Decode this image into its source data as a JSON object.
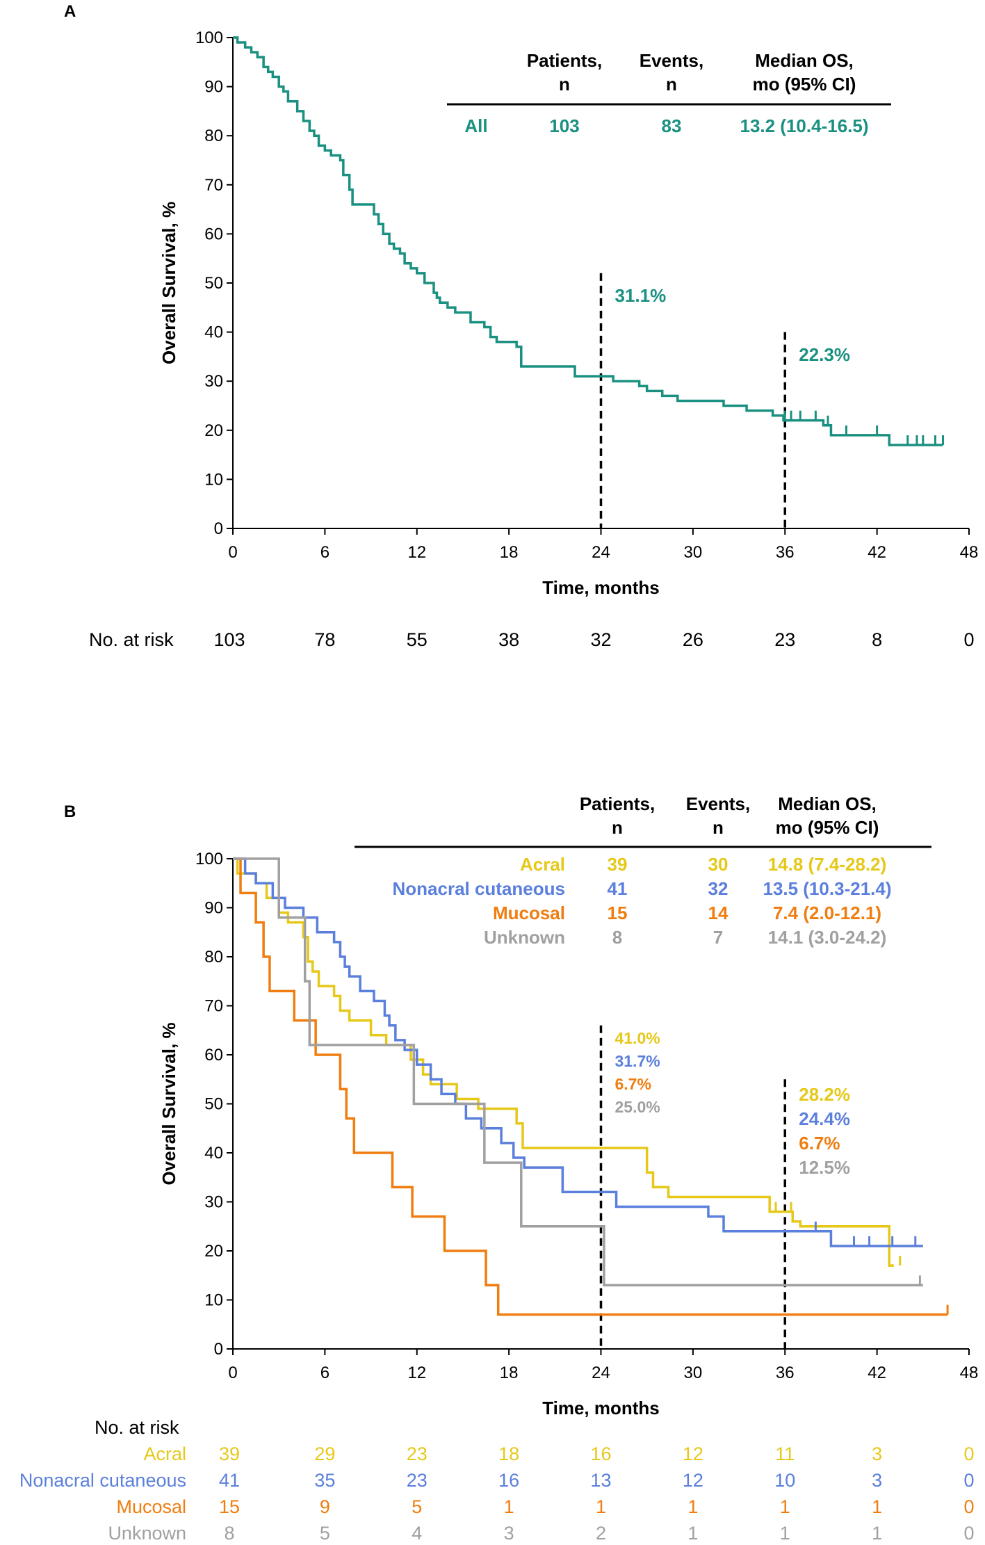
{
  "colors": {
    "all": "#1a9080",
    "acral": "#e6c819",
    "nonacral": "#5b7fdc",
    "mucosal": "#f07d0f",
    "unknown": "#a0a0a0",
    "black": "#000000"
  },
  "chart_data": [
    {
      "panel": "A",
      "type": "line",
      "subtype": "kaplan-meier",
      "ylabel": "Overall Survival, %",
      "xlabel": "Time, months",
      "xlim": [
        0,
        48
      ],
      "ylim": [
        0,
        100
      ],
      "xticks": [
        "0",
        "6",
        "12",
        "18",
        "24",
        "30",
        "36",
        "42",
        "48"
      ],
      "yticks": [
        "0",
        "10",
        "20",
        "30",
        "40",
        "50",
        "60",
        "70",
        "80",
        "90",
        "100"
      ],
      "table_headers": [
        "Patients,\nn",
        "Events,\nn",
        "Median OS,\nmo (95% CI)"
      ],
      "table_header_lines": [
        [
          "Patients,",
          "n"
        ],
        [
          "Events,",
          "n"
        ],
        [
          "Median OS,",
          "mo (95% CI)"
        ]
      ],
      "series": [
        {
          "name": "All",
          "color_key": "all",
          "patients": "103",
          "events": "83",
          "median": "13.2 (10.4-16.5)",
          "x": [
            0,
            0.3,
            0.8,
            1.2,
            1.6,
            2.0,
            2.3,
            2.6,
            3.0,
            3.3,
            3.6,
            4.2,
            4.6,
            5.0,
            5.3,
            5.6,
            6.0,
            6.4,
            7.0,
            7.2,
            7.6,
            7.8,
            8.2,
            9.2,
            9.5,
            9.8,
            10.2,
            10.5,
            10.9,
            11.2,
            11.6,
            12.0,
            12.5,
            13.1,
            13.3,
            13.5,
            14.0,
            14.5,
            15.5,
            16.4,
            16.8,
            17.2,
            18.5,
            18.8,
            21.5,
            22.3,
            24.8,
            26.5,
            27.0,
            28.0,
            29.0,
            32.0,
            33.5,
            35.2,
            35.9,
            36.5,
            38.5,
            39.0,
            42.8,
            46.3
          ],
          "y": [
            100,
            99,
            98,
            97,
            96,
            94,
            93,
            92,
            90,
            89,
            87,
            85,
            83,
            81,
            80,
            78,
            77,
            76,
            75,
            72,
            69,
            66,
            66,
            64,
            62,
            60,
            58,
            57,
            56,
            54,
            53,
            52,
            50,
            48,
            47,
            46,
            45,
            44,
            42,
            41,
            39,
            38,
            37,
            33,
            33,
            31,
            30,
            29,
            28,
            27,
            26,
            25,
            24,
            23,
            22,
            22,
            21,
            19,
            17,
            17
          ],
          "censor_x": [
            36.0,
            36.4,
            37.0,
            38.0,
            38.8,
            40.0,
            42.0,
            44.0,
            44.6,
            45.0,
            45.8,
            46.3
          ],
          "landmarks": [
            {
              "x": 24,
              "label": "31.1%"
            },
            {
              "x": 36,
              "label": "22.3%"
            }
          ]
        }
      ],
      "at_risk_label": "No. at risk",
      "at_risk": [
        [
          "103",
          "78",
          "55",
          "38",
          "32",
          "26",
          "23",
          "8",
          "0"
        ]
      ]
    },
    {
      "panel": "B",
      "type": "line",
      "subtype": "kaplan-meier",
      "ylabel": "Overall Survival, %",
      "xlabel": "Time, months",
      "xlim": [
        0,
        48
      ],
      "ylim": [
        0,
        100
      ],
      "xticks": [
        "0",
        "6",
        "12",
        "18",
        "24",
        "30",
        "36",
        "42",
        "48"
      ],
      "yticks": [
        "0",
        "10",
        "20",
        "30",
        "40",
        "50",
        "60",
        "70",
        "80",
        "90",
        "100"
      ],
      "table_headers": [
        "Patients,\nn",
        "Events,\nn",
        "Median OS,\nmo (95% CI)"
      ],
      "table_header_lines": [
        [
          "Patients,",
          "n"
        ],
        [
          "Events,",
          "n"
        ],
        [
          "Median OS,",
          "mo (95% CI)"
        ]
      ],
      "series": [
        {
          "name": "Acral",
          "color_key": "acral",
          "patients": "39",
          "events": "30",
          "median": "14.8 (7.4-28.2)",
          "x": [
            0,
            0.3,
            1.5,
            2.2,
            3.0,
            3.6,
            4.6,
            4.9,
            5.2,
            5.6,
            6.6,
            7.0,
            7.6,
            9.0,
            10.0,
            11.6,
            12.4,
            12.9,
            14.6,
            16.0,
            18.5,
            18.9,
            24.0,
            27.0,
            27.4,
            28.4,
            28.8,
            35.0,
            35.6,
            36.5,
            37.0,
            42.8,
            43.1
          ],
          "y": [
            100,
            97,
            95,
            92,
            89,
            87,
            84,
            79,
            77,
            74,
            72,
            69,
            67,
            64,
            62,
            59,
            56,
            54,
            51,
            49,
            46,
            41,
            41,
            36,
            33,
            31,
            31,
            28,
            28,
            26,
            25,
            17,
            17
          ],
          "censor_x": [
            35.4,
            36.4,
            43.5
          ],
          "landmark_label": "41.0%",
          "landmark36_label": "28.2%"
        },
        {
          "name": "Nonacral cutaneous",
          "color_key": "nonacral",
          "patients": "41",
          "events": "32",
          "median": "13.5 (10.3-21.4)",
          "x": [
            0,
            0.8,
            1.5,
            2.6,
            3.4,
            4.6,
            5.5,
            6.6,
            7.0,
            7.3,
            7.6,
            8.3,
            9.2,
            9.9,
            10.2,
            10.6,
            11.2,
            12.0,
            12.9,
            13.6,
            14.5,
            15.2,
            16.2,
            17.5,
            18.3,
            19.0,
            21.5,
            24.0,
            25.0,
            31.0,
            32.0,
            39.0,
            45.0
          ],
          "y": [
            100,
            97,
            95,
            92,
            90,
            88,
            85,
            83,
            80,
            78,
            76,
            73,
            71,
            68,
            66,
            63,
            61,
            58,
            55,
            52,
            50,
            47,
            45,
            42,
            39,
            37,
            32,
            32,
            29,
            27,
            24,
            21,
            21
          ],
          "censor_x": [
            38.0,
            40.5,
            41.5,
            43.0,
            44.5
          ],
          "landmark_label": "31.7%",
          "landmark36_label": "24.4%"
        },
        {
          "name": "Mucosal",
          "color_key": "mucosal",
          "patients": "15",
          "events": "14",
          "median": "7.4 (2.0-12.1)",
          "x": [
            0,
            0.5,
            1.5,
            2.0,
            2.4,
            4.0,
            5.4,
            7.0,
            7.4,
            7.9,
            10.4,
            11.7,
            13.8,
            16.5,
            17.3,
            46.6
          ],
          "y": [
            100,
            93,
            87,
            80,
            73,
            67,
            60,
            53,
            47,
            40,
            33,
            27,
            20,
            13,
            7,
            7
          ],
          "censor_x": [
            46.6
          ],
          "landmark_label": "6.7%",
          "landmark36_label": "6.7%"
        },
        {
          "name": "Unknown",
          "color_key": "unknown",
          "patients": "8",
          "events": "7",
          "median": "14.1 (3.0-24.2)",
          "x": [
            0,
            3.0,
            3.7,
            4.7,
            5.0,
            11.8,
            16.4,
            18.8,
            24.2,
            45.0
          ],
          "y": [
            100,
            88,
            88,
            75,
            62,
            50,
            38,
            25,
            13,
            13
          ],
          "censor_x": [
            44.8
          ],
          "landmark_label": "25.0%",
          "landmark36_label": "12.5%"
        }
      ],
      "at_risk_label": "No. at risk",
      "at_risk_groups": [
        "Acral",
        "Nonacral cutaneous",
        "Mucosal",
        "Unknown"
      ],
      "at_risk": [
        [
          "39",
          "29",
          "23",
          "18",
          "16",
          "12",
          "11",
          "3",
          "0"
        ],
        [
          "41",
          "35",
          "23",
          "16",
          "13",
          "12",
          "10",
          "3",
          "0"
        ],
        [
          "15",
          "9",
          "5",
          "1",
          "1",
          "1",
          "1",
          "1",
          "0"
        ],
        [
          "8",
          "5",
          "4",
          "3",
          "2",
          "1",
          "1",
          "1",
          "0"
        ]
      ]
    }
  ]
}
